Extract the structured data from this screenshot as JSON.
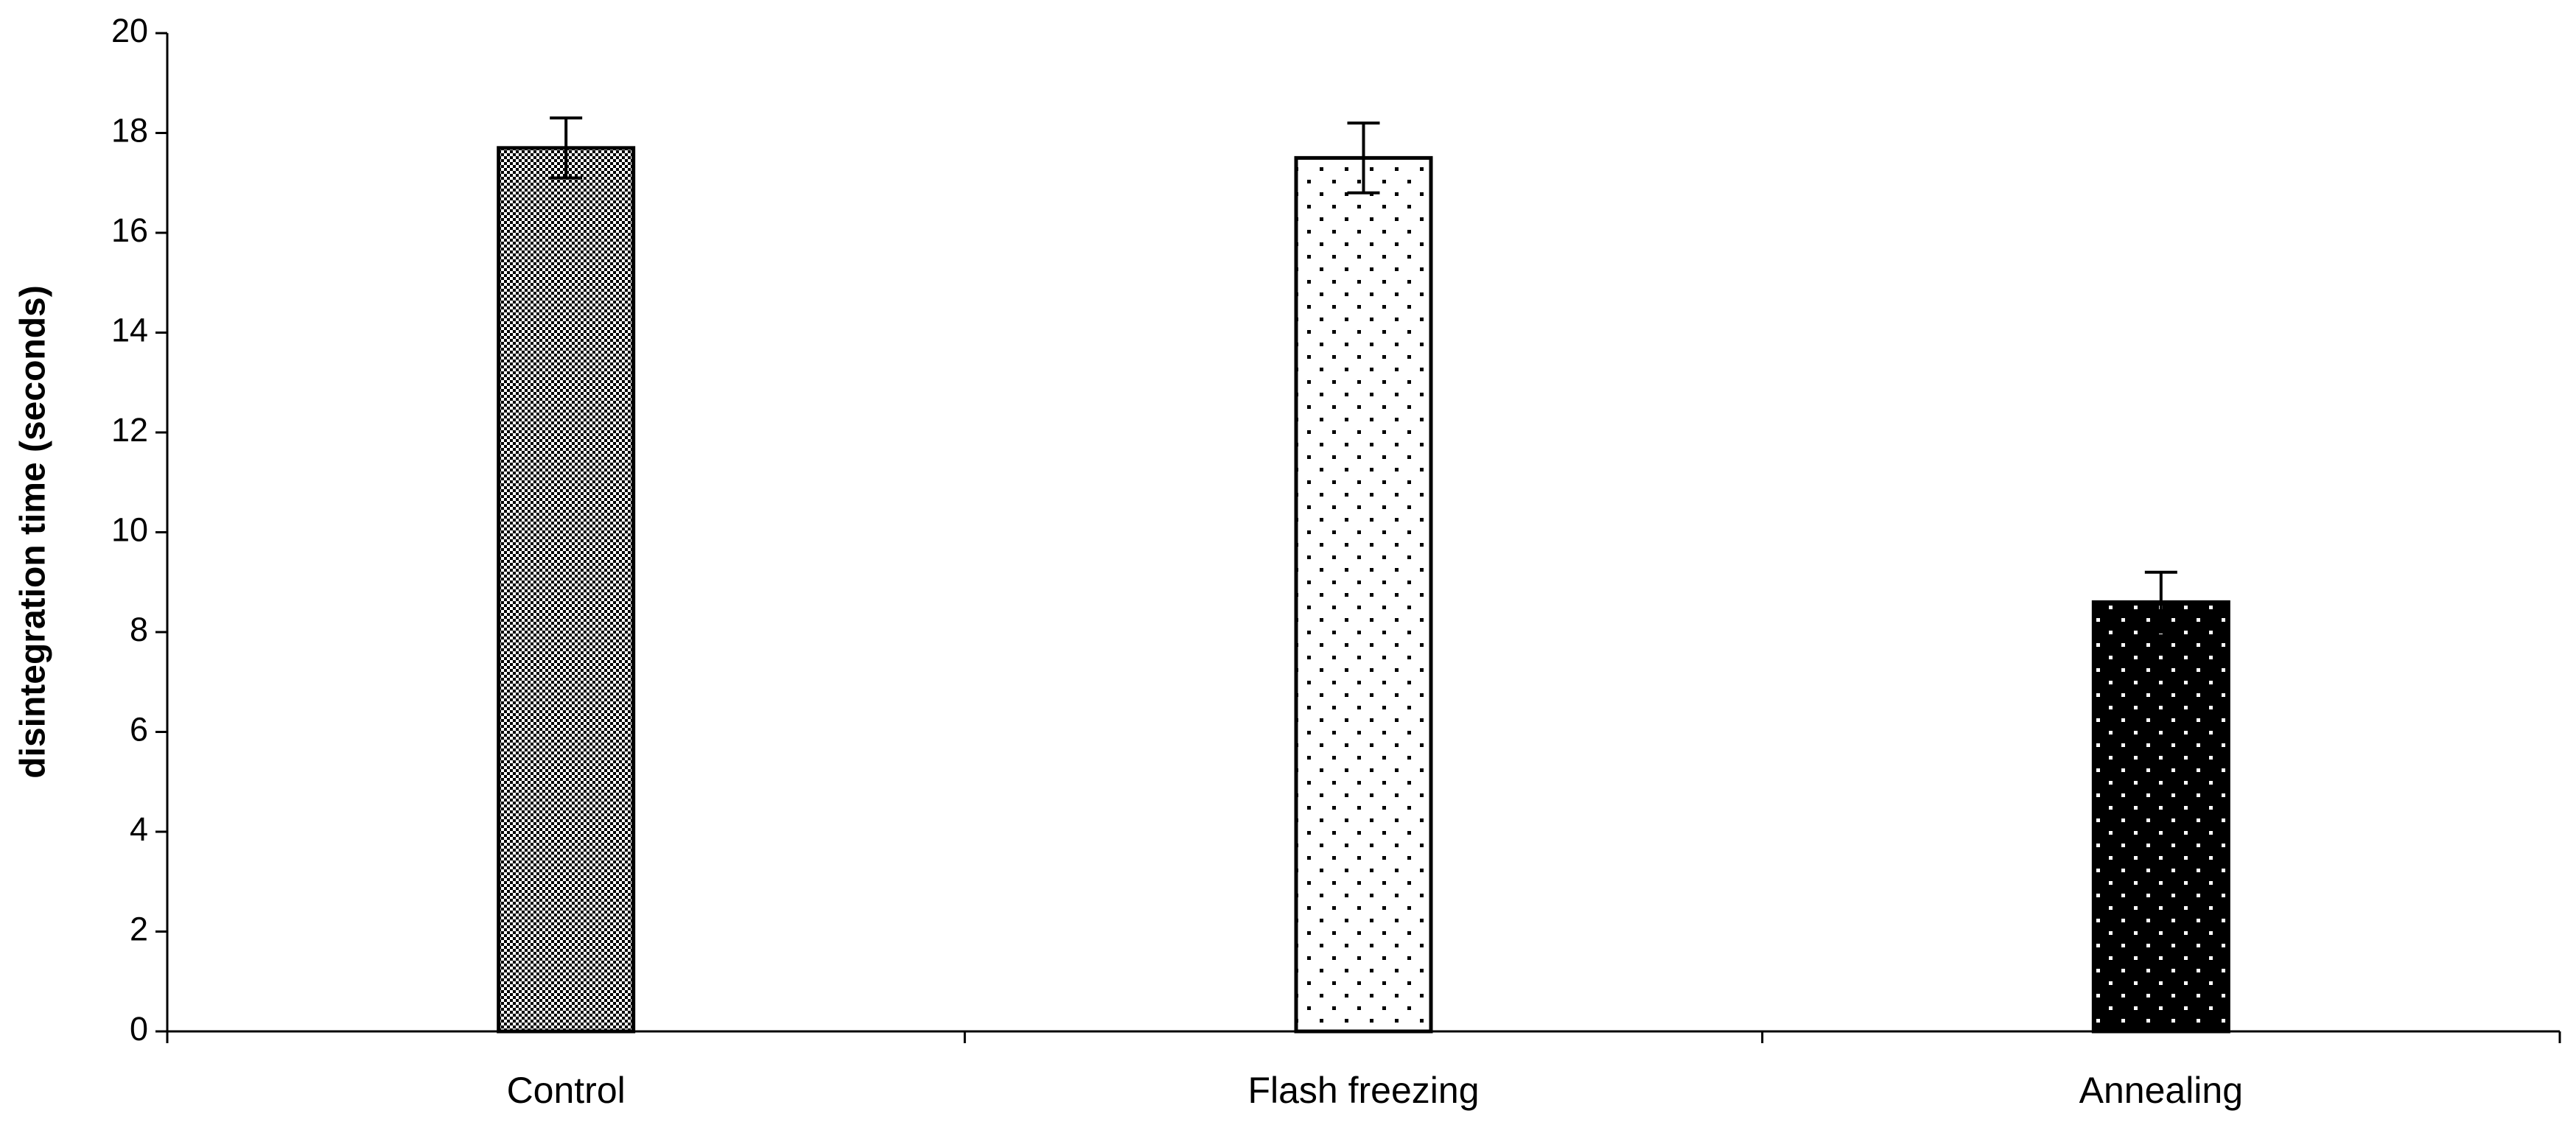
{
  "chart_data": {
    "type": "bar",
    "y_label": "disintegration time (seconds)",
    "categories": [
      "Control",
      "Flash freezing",
      "Annealing"
    ],
    "values": [
      17.7,
      17.5,
      8.6
    ],
    "errors": [
      0.6,
      0.7,
      0.6
    ],
    "patterns": [
      "checker",
      "dots",
      "dots-inverse"
    ],
    "ylim": [
      0,
      20
    ],
    "yticks": [
      0,
      2,
      4,
      6,
      8,
      10,
      12,
      14,
      16,
      18,
      20
    ],
    "grid": false
  }
}
